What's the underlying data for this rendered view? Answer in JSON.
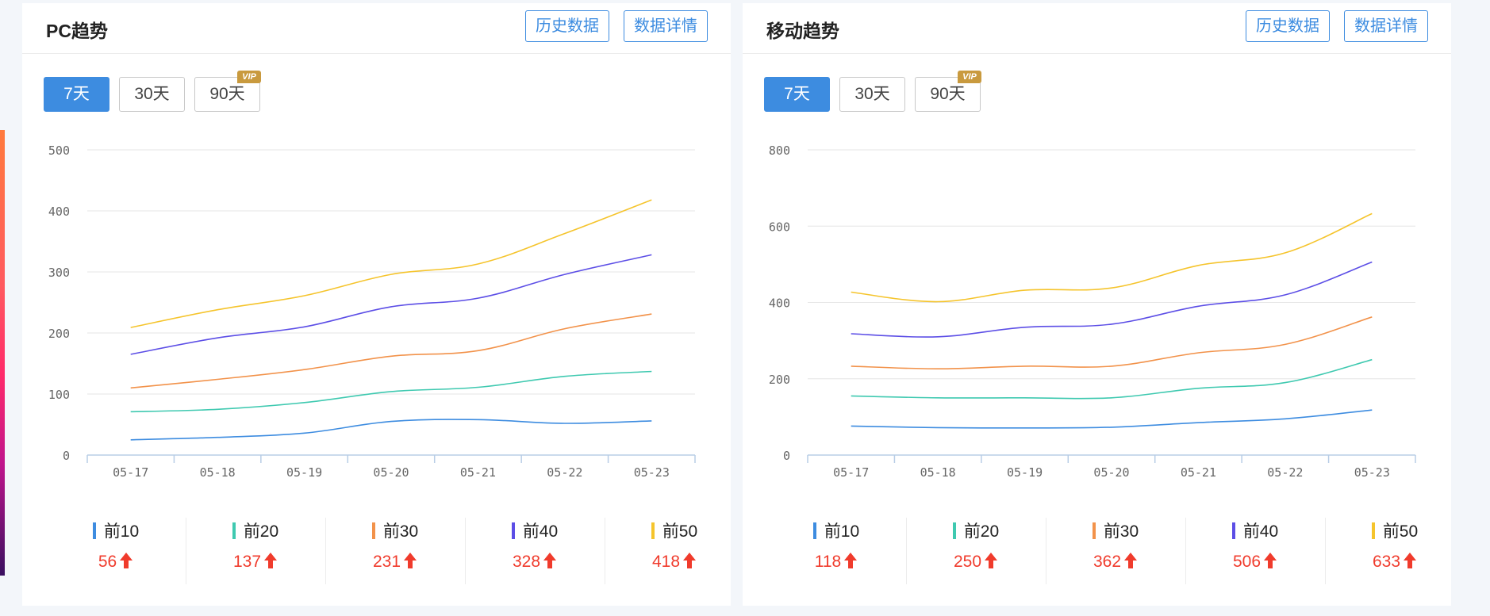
{
  "panels": [
    {
      "title": "PC趋势",
      "history_label": "历史数据",
      "detail_label": "数据详情",
      "range_tabs": [
        "7天",
        "30天",
        "90天"
      ],
      "active_range": 0,
      "vip_label": "VIP",
      "chart_data": {
        "type": "line",
        "x": [
          "05-17",
          "05-18",
          "05-19",
          "05-20",
          "05-21",
          "05-22",
          "05-23"
        ],
        "ylim": [
          0,
          500
        ],
        "yticks": [
          0,
          100,
          200,
          300,
          400,
          500
        ],
        "grid": true,
        "series": [
          {
            "name": "前10",
            "color": "#3d8ce0",
            "values": [
              25,
              29,
              36,
              55,
              58,
              52,
              56
            ]
          },
          {
            "name": "前20",
            "color": "#3fc9b0",
            "values": [
              71,
              75,
              86,
              104,
              111,
              129,
              137
            ]
          },
          {
            "name": "前30",
            "color": "#f2924a",
            "values": [
              110,
              124,
              140,
              162,
              171,
              207,
              231
            ]
          },
          {
            "name": "前40",
            "color": "#5c4ee6",
            "values": [
              165,
              192,
              210,
              243,
              257,
              296,
              328
            ]
          },
          {
            "name": "前50",
            "color": "#f5c42c",
            "values": [
              209,
              238,
              261,
              296,
              313,
              363,
              418
            ]
          }
        ]
      },
      "stats": [
        {
          "label": "前10",
          "value": "56",
          "color": "#3d8ce0"
        },
        {
          "label": "前20",
          "value": "137",
          "color": "#3fc9b0"
        },
        {
          "label": "前30",
          "value": "231",
          "color": "#f2924a"
        },
        {
          "label": "前40",
          "value": "328",
          "color": "#5c4ee6"
        },
        {
          "label": "前50",
          "value": "418",
          "color": "#f5c42c"
        }
      ]
    },
    {
      "title": "移动趋势",
      "history_label": "历史数据",
      "detail_label": "数据详情",
      "range_tabs": [
        "7天",
        "30天",
        "90天"
      ],
      "active_range": 0,
      "vip_label": "VIP",
      "chart_data": {
        "type": "line",
        "x": [
          "05-17",
          "05-18",
          "05-19",
          "05-20",
          "05-21",
          "05-22",
          "05-23"
        ],
        "ylim": [
          0,
          800
        ],
        "yticks": [
          0,
          200,
          400,
          600,
          800
        ],
        "grid": true,
        "series": [
          {
            "name": "前10",
            "color": "#3d8ce0",
            "values": [
              76,
              72,
              71,
              73,
              85,
              95,
              118
            ]
          },
          {
            "name": "前20",
            "color": "#3fc9b0",
            "values": [
              155,
              150,
              150,
              150,
              175,
              190,
              250
            ]
          },
          {
            "name": "前30",
            "color": "#f2924a",
            "values": [
              233,
              226,
              233,
              233,
              268,
              290,
              362
            ]
          },
          {
            "name": "前40",
            "color": "#5c4ee6",
            "values": [
              318,
              310,
              335,
              343,
              390,
              420,
              506
            ]
          },
          {
            "name": "前50",
            "color": "#f5c42c",
            "values": [
              427,
              402,
              432,
              438,
              497,
              530,
              633
            ]
          }
        ]
      },
      "stats": [
        {
          "label": "前10",
          "value": "118",
          "color": "#3d8ce0"
        },
        {
          "label": "前20",
          "value": "250",
          "color": "#3fc9b0"
        },
        {
          "label": "前30",
          "value": "362",
          "color": "#f2924a"
        },
        {
          "label": "前40",
          "value": "506",
          "color": "#5c4ee6"
        },
        {
          "label": "前50",
          "value": "633",
          "color": "#f5c42c"
        }
      ]
    }
  ]
}
